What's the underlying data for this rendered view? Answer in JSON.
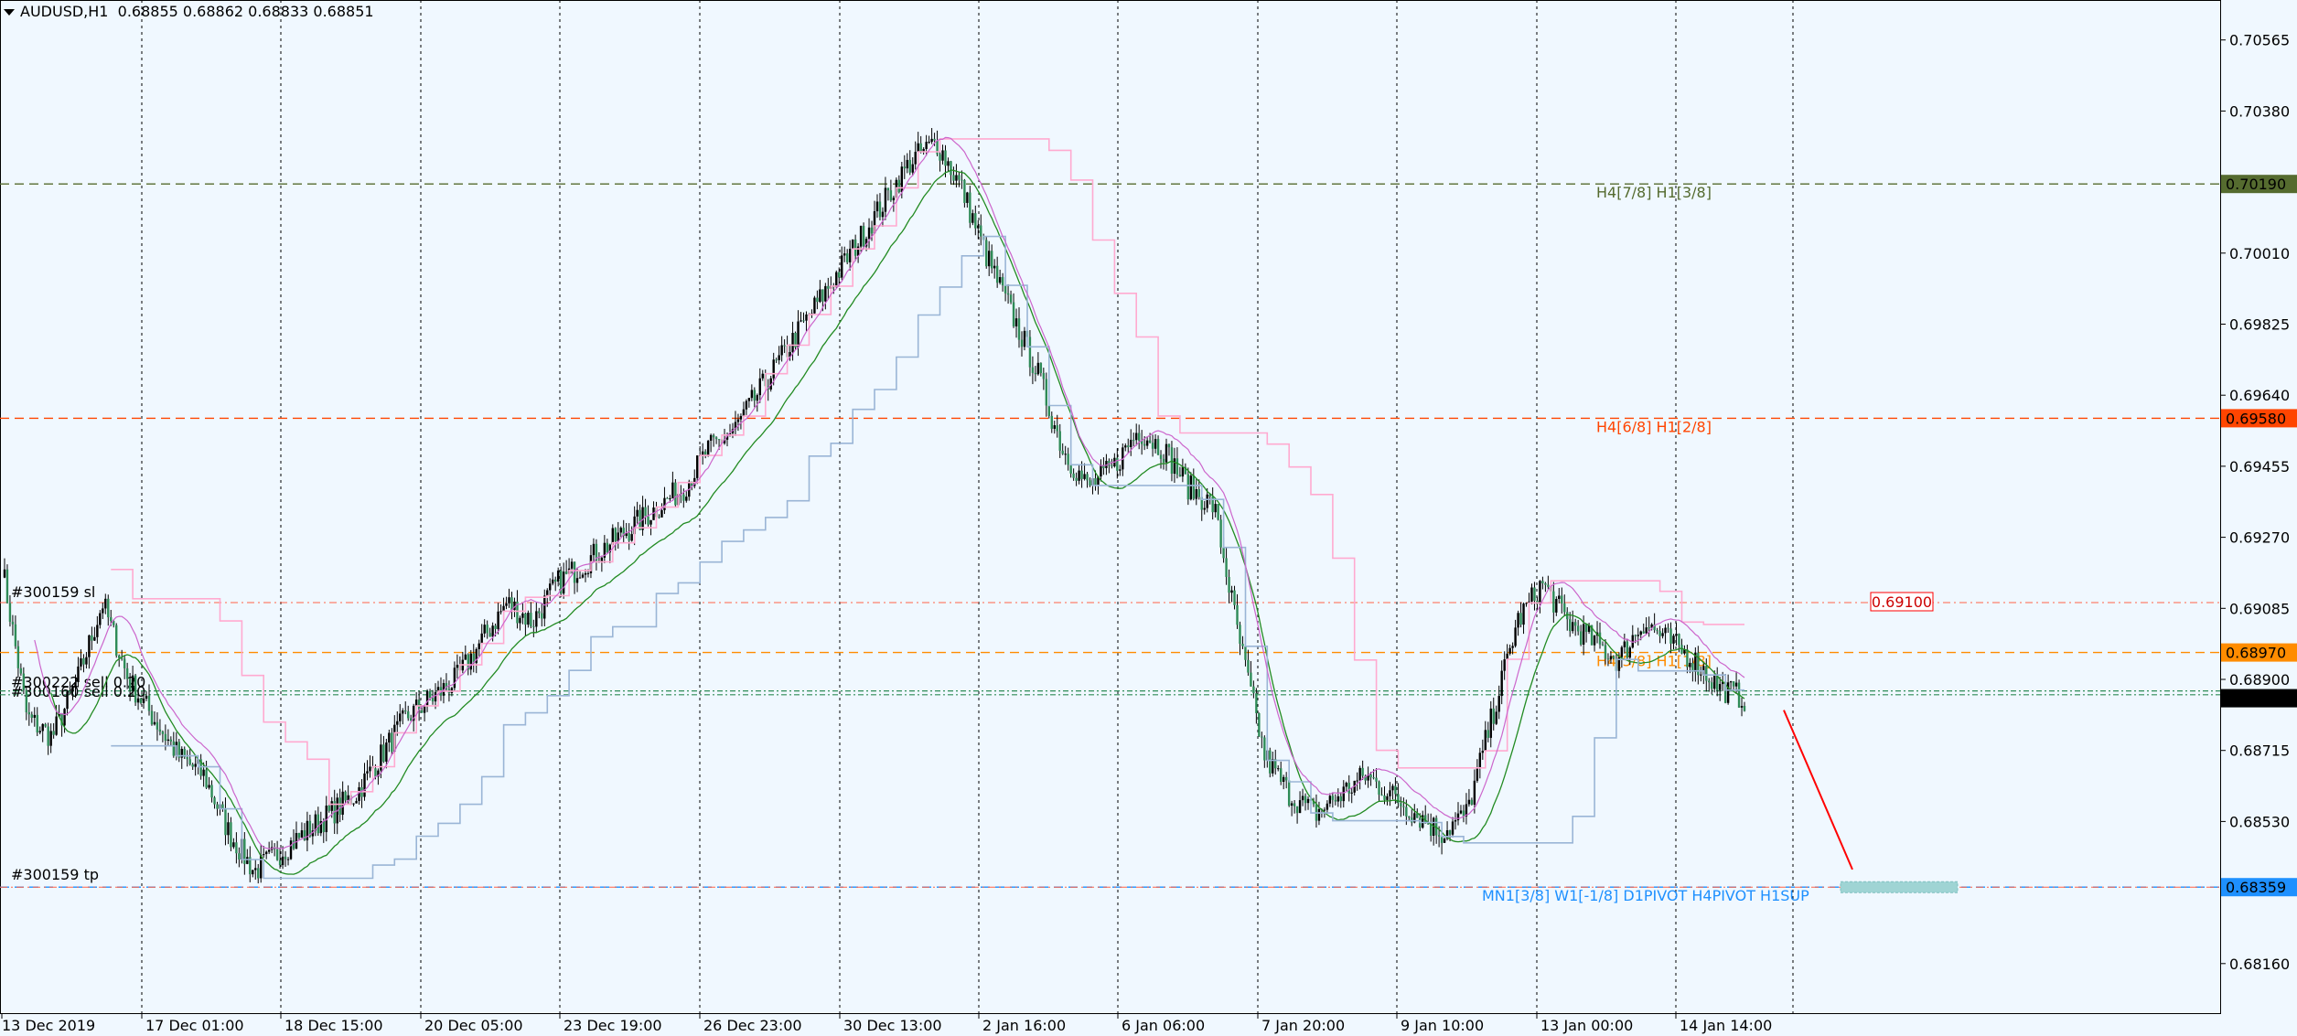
{
  "header": {
    "symbol_timeframe": "AUDUSD,H1",
    "ohlc": "0.68855 0.68862 0.68833 0.68851"
  },
  "price_axis": {
    "ticks": [
      "0.70565",
      "0.70380",
      "0.70010",
      "0.69825",
      "0.69640",
      "0.69455",
      "0.69270",
      "0.69085",
      "0.68900",
      "0.68715",
      "0.68530",
      "0.68160"
    ]
  },
  "time_axis": {
    "ticks": [
      "13 Dec 2019",
      "17 Dec 01:00",
      "18 Dec 15:00",
      "20 Dec 05:00",
      "23 Dec 19:00",
      "26 Dec 23:00",
      "30 Dec 13:00",
      "2 Jan 16:00",
      "6 Jan 06:00",
      "7 Jan 20:00",
      "9 Jan 10:00",
      "13 Jan 00:00",
      "14 Jan 14:00"
    ]
  },
  "levels": [
    {
      "name": "level-0.70190",
      "price": 0.7019,
      "label": "H4[7/8] H1[3/8]",
      "tag": "0.70190",
      "color": "#556b2f"
    },
    {
      "name": "level-0.69580",
      "price": 0.6958,
      "label": "H4[6/8] H1[2/8]",
      "tag": "0.69580",
      "color": "#ff4500"
    },
    {
      "name": "level-0.68970",
      "price": 0.6897,
      "label": "H4[5/8] H1[1/8]",
      "tag": "0.68970",
      "color": "#ff8c00"
    },
    {
      "name": "level-0.68359",
      "price": 0.68359,
      "label": "MN1[3/8] W1[-1/8] D1PIVOT H4PIVOT H1SUP",
      "tag": "0.68359",
      "color": "#1e90ff"
    }
  ],
  "trade_lines": {
    "sl_label": "#300159 sl",
    "tp_label": "#300159 tp",
    "sell1_label": "#300222 sell 0.20",
    "sell2_label": "#300160 sell 0.20",
    "target_price_box": "0.69100"
  },
  "current_price": "0.68851",
  "chart_data": {
    "type": "candlestick",
    "symbol": "AUDUSD",
    "timeframe": "H1",
    "ylim": [
      0.6805,
      0.7065
    ],
    "x": [
      "13 Dec 2019",
      "17 Dec 01:00",
      "18 Dec 15:00",
      "20 Dec 05:00",
      "23 Dec 19:00",
      "26 Dec 23:00",
      "30 Dec 13:00",
      "2 Jan 16:00",
      "6 Jan 06:00",
      "7 Jan 20:00",
      "9 Jan 10:00",
      "13 Jan 00:00",
      "14 Jan 14:00"
    ],
    "close_path": [
      0.692,
      0.688,
      0.6875,
      0.689,
      0.691,
      0.689,
      0.688,
      0.687,
      0.6865,
      0.685,
      0.684,
      0.6845,
      0.685,
      0.6855,
      0.686,
      0.687,
      0.688,
      0.6885,
      0.689,
      0.69,
      0.691,
      0.6905,
      0.6915,
      0.692,
      0.6925,
      0.693,
      0.6935,
      0.694,
      0.695,
      0.6955,
      0.6965,
      0.6975,
      0.6985,
      0.6995,
      0.7005,
      0.7015,
      0.7025,
      0.703,
      0.7018,
      0.7,
      0.6985,
      0.697,
      0.695,
      0.694,
      0.6945,
      0.6955,
      0.695,
      0.694,
      0.6935,
      0.69,
      0.687,
      0.686,
      0.6855,
      0.686,
      0.6865,
      0.686,
      0.6855,
      0.685,
      0.6855,
      0.688,
      0.6905,
      0.6915,
      0.6905,
      0.69,
      0.6895,
      0.6905,
      0.69,
      0.6895,
      0.6888,
      0.6885
    ],
    "lines": [
      {
        "name": "green-ma",
        "color": "#228b22"
      },
      {
        "name": "blue-ma",
        "color": "#9ab5d6"
      },
      {
        "name": "pink-stop",
        "color": "#ffaad0"
      },
      {
        "name": "purple-ma",
        "color": "#cc66cc"
      }
    ]
  }
}
